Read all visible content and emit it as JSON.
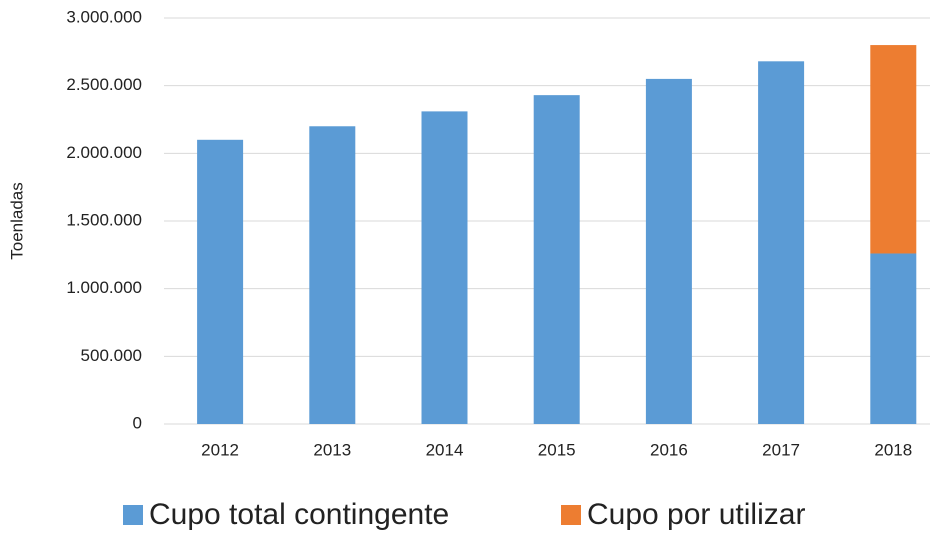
{
  "chart_data": {
    "type": "stacked_bar",
    "y_label": "Toenladas",
    "categories": [
      "2012",
      "2013",
      "2014",
      "2015",
      "2016",
      "2017",
      "2018"
    ],
    "series": [
      {
        "name": "Cupo total contingente",
        "color": "#5b9bd5",
        "values": [
          2100000,
          2200000,
          2310000,
          2430000,
          2550000,
          2680000,
          1260000
        ]
      },
      {
        "name": "Cupo por utilizar",
        "color": "#ed7d31",
        "values": [
          null,
          null,
          null,
          null,
          null,
          null,
          1540000
        ]
      }
    ],
    "ylim": [
      0,
      3000000
    ],
    "yticks": [
      0,
      {
        "value": 500000,
        "label": "500.000"
      },
      {
        "value": 1000000,
        "label": "1.000.000"
      },
      {
        "value": 1500000,
        "label": "1.500.000"
      },
      {
        "value": 2000000,
        "label": "2.000.000"
      },
      {
        "value": 2500000,
        "label": "2.500.000"
      },
      {
        "value": 3000000,
        "label": "3.000.000"
      }
    ],
    "grid": true
  }
}
